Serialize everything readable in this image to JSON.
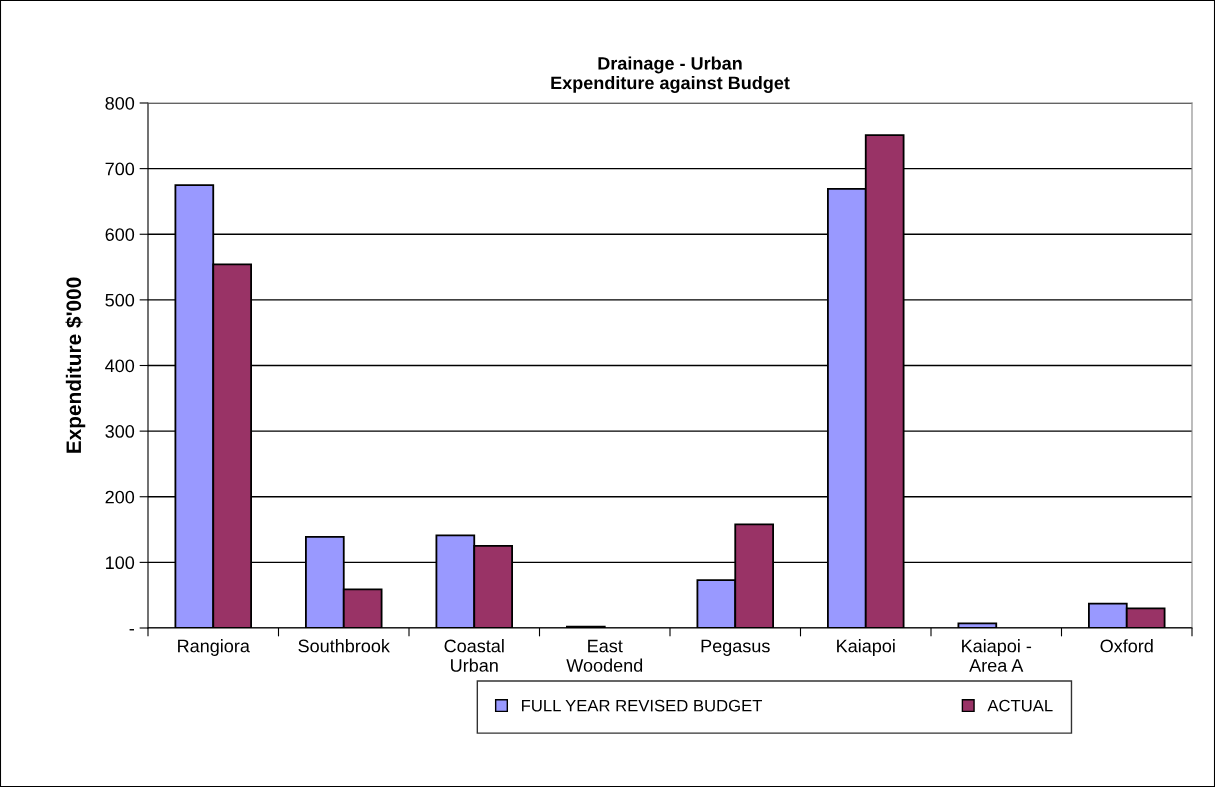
{
  "chart_data": {
    "type": "bar",
    "title": "Drainage - Urban\nExpenditure against Budget",
    "ylabel": "Expenditure $'000",
    "categories": [
      "Rangiora",
      "Southbrook",
      "Coastal\nUrban",
      "East\nWoodend",
      "Pegasus",
      "Kaiapoi",
      "Kaiapoi -\nArea A",
      "Oxford"
    ],
    "series": [
      {
        "name": "FULL YEAR REVISED BUDGET",
        "color": "#9999ff",
        "values": [
          675,
          139,
          141,
          2,
          73,
          669,
          7,
          37
        ]
      },
      {
        "name": "ACTUAL",
        "color": "#993366",
        "values": [
          554,
          59,
          125,
          null,
          158,
          751,
          null,
          30
        ]
      }
    ],
    "ylim": [
      0,
      800
    ],
    "yticks": [
      {
        "value": 0,
        "label": "-"
      },
      100,
      200,
      300,
      400,
      500,
      600,
      700,
      800
    ],
    "grid": "y",
    "legend": "bottom"
  }
}
